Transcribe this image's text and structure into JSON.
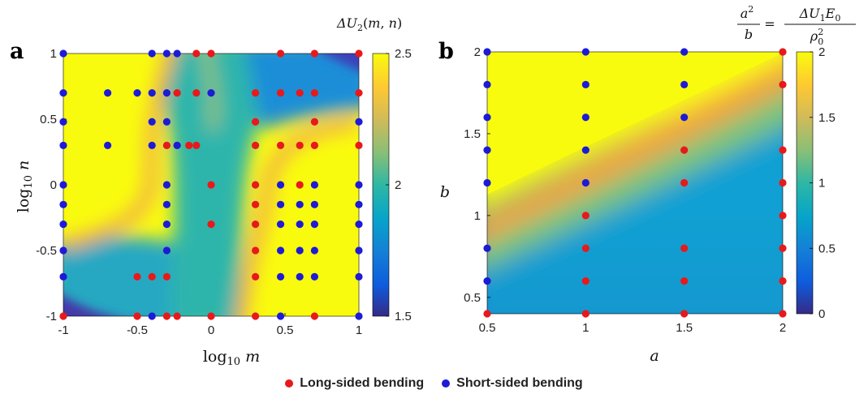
{
  "colors": {
    "long": "#e8191b",
    "short": "#1d1bd6"
  },
  "legend": {
    "long_label": "Long-sided bending",
    "short_label": "Short-sided bending"
  },
  "chart_data": [
    {
      "type": "heatmap",
      "panel_label": "a",
      "xlabel": "log10 m",
      "ylabel": "log10 n",
      "xlim": [
        -1,
        1
      ],
      "ylim": [
        -1,
        1
      ],
      "xticks": [
        "-1",
        "-0.5",
        "0",
        "0.5",
        "1"
      ],
      "yticks": [
        "-1",
        "-0.5",
        "0",
        "0.5",
        "1"
      ],
      "colorbar": {
        "title": "ΔU2(m,n)",
        "range": [
          1.5,
          2.5
        ],
        "ticks": [
          "1.5",
          "2",
          "2.5"
        ],
        "colormap": "parula"
      },
      "long_sided_points": [
        [
          -0.1,
          1
        ],
        [
          0,
          1
        ],
        [
          0.47,
          1
        ],
        [
          0.7,
          1
        ],
        [
          1,
          1
        ],
        [
          -0.23,
          0.7
        ],
        [
          -0.1,
          0.7
        ],
        [
          0.3,
          0.7
        ],
        [
          0.47,
          0.7
        ],
        [
          0.6,
          0.7
        ],
        [
          0.7,
          0.7
        ],
        [
          1,
          0.7
        ],
        [
          0.3,
          0.48
        ],
        [
          0.7,
          0.48
        ],
        [
          -0.3,
          0.3
        ],
        [
          -0.15,
          0.3
        ],
        [
          -0.1,
          0.3
        ],
        [
          0.3,
          0.3
        ],
        [
          0.47,
          0.3
        ],
        [
          0.6,
          0.3
        ],
        [
          0.7,
          0.3
        ],
        [
          1,
          0.3
        ],
        [
          0,
          0
        ],
        [
          0.3,
          0
        ],
        [
          0.6,
          0
        ],
        [
          0.3,
          -0.15
        ],
        [
          0,
          -0.3
        ],
        [
          0.3,
          -0.3
        ],
        [
          0.3,
          -0.5
        ],
        [
          -0.5,
          -0.7
        ],
        [
          -0.4,
          -0.7
        ],
        [
          -0.3,
          -0.7
        ],
        [
          0.3,
          -0.7
        ],
        [
          -1,
          -1
        ],
        [
          -0.5,
          -1
        ],
        [
          -0.3,
          -1
        ],
        [
          -0.23,
          -1
        ],
        [
          0,
          -1
        ],
        [
          0.3,
          -1
        ],
        [
          0.7,
          -1
        ]
      ],
      "short_sided_points": [
        [
          -1,
          1
        ],
        [
          -0.4,
          1
        ],
        [
          -0.3,
          1
        ],
        [
          -0.23,
          1
        ],
        [
          -1,
          0.7
        ],
        [
          -0.7,
          0.7
        ],
        [
          -0.5,
          0.7
        ],
        [
          -0.4,
          0.7
        ],
        [
          -0.3,
          0.7
        ],
        [
          0,
          0.7
        ],
        [
          -1,
          0.48
        ],
        [
          -0.3,
          0.48
        ],
        [
          -0.4,
          0.48
        ],
        [
          1,
          0.48
        ],
        [
          -1,
          0.3
        ],
        [
          -0.7,
          0.3
        ],
        [
          -0.4,
          0.3
        ],
        [
          -0.23,
          0.3
        ],
        [
          -1,
          0
        ],
        [
          -0.3,
          0
        ],
        [
          0.47,
          0
        ],
        [
          0.7,
          0
        ],
        [
          1,
          0
        ],
        [
          -1,
          -0.15
        ],
        [
          -0.3,
          -0.15
        ],
        [
          0.47,
          -0.15
        ],
        [
          0.6,
          -0.15
        ],
        [
          0.7,
          -0.15
        ],
        [
          1,
          -0.15
        ],
        [
          -1,
          -0.3
        ],
        [
          -0.3,
          -0.3
        ],
        [
          0.47,
          -0.3
        ],
        [
          0.6,
          -0.3
        ],
        [
          0.7,
          -0.3
        ],
        [
          1,
          -0.3
        ],
        [
          -1,
          -0.5
        ],
        [
          -0.3,
          -0.5
        ],
        [
          0.47,
          -0.5
        ],
        [
          0.6,
          -0.5
        ],
        [
          0.7,
          -0.5
        ],
        [
          1,
          -0.5
        ],
        [
          -1,
          -0.7
        ],
        [
          0.47,
          -0.7
        ],
        [
          0.6,
          -0.7
        ],
        [
          0.7,
          -0.7
        ],
        [
          1,
          -0.7
        ],
        [
          -0.4,
          -1
        ],
        [
          0.47,
          -1
        ],
        [
          1,
          -1
        ]
      ]
    },
    {
      "type": "heatmap",
      "panel_label": "b",
      "xlabel": "a",
      "ylabel": "b",
      "xlim": [
        0.5,
        2
      ],
      "ylim": [
        0.4,
        2
      ],
      "xticks": [
        "0.5",
        "1",
        "1.5",
        "2"
      ],
      "yticks": [
        "0.5",
        "1",
        "1.5",
        "2"
      ],
      "colorbar": {
        "title": "a²/b = ΔU1E0/ρ0²",
        "range": [
          0,
          2
        ],
        "ticks": [
          "0",
          "0.5",
          "1",
          "1.5",
          "2"
        ],
        "colormap": "parula"
      },
      "long_sided_points": [
        [
          2,
          2
        ],
        [
          2,
          1.8
        ],
        [
          1.5,
          1.4
        ],
        [
          2,
          1.4
        ],
        [
          1.5,
          1.2
        ],
        [
          2,
          1.2
        ],
        [
          1,
          1
        ],
        [
          2,
          1
        ],
        [
          1,
          0.8
        ],
        [
          1.5,
          0.8
        ],
        [
          2,
          0.8
        ],
        [
          1,
          0.6
        ],
        [
          1.5,
          0.6
        ],
        [
          2,
          0.6
        ],
        [
          0.5,
          0.4
        ],
        [
          1,
          0.4
        ],
        [
          1.5,
          0.4
        ],
        [
          2,
          0.4
        ]
      ],
      "short_sided_points": [
        [
          0.5,
          2
        ],
        [
          1,
          2
        ],
        [
          1.5,
          2
        ],
        [
          0.5,
          1.8
        ],
        [
          1,
          1.8
        ],
        [
          1.5,
          1.8
        ],
        [
          0.5,
          1.6
        ],
        [
          1,
          1.6
        ],
        [
          1.5,
          1.6
        ],
        [
          0.5,
          1.4
        ],
        [
          1,
          1.4
        ],
        [
          0.5,
          1.2
        ],
        [
          1,
          1.2
        ],
        [
          0.5,
          0.8
        ],
        [
          0.5,
          0.6
        ]
      ]
    }
  ]
}
